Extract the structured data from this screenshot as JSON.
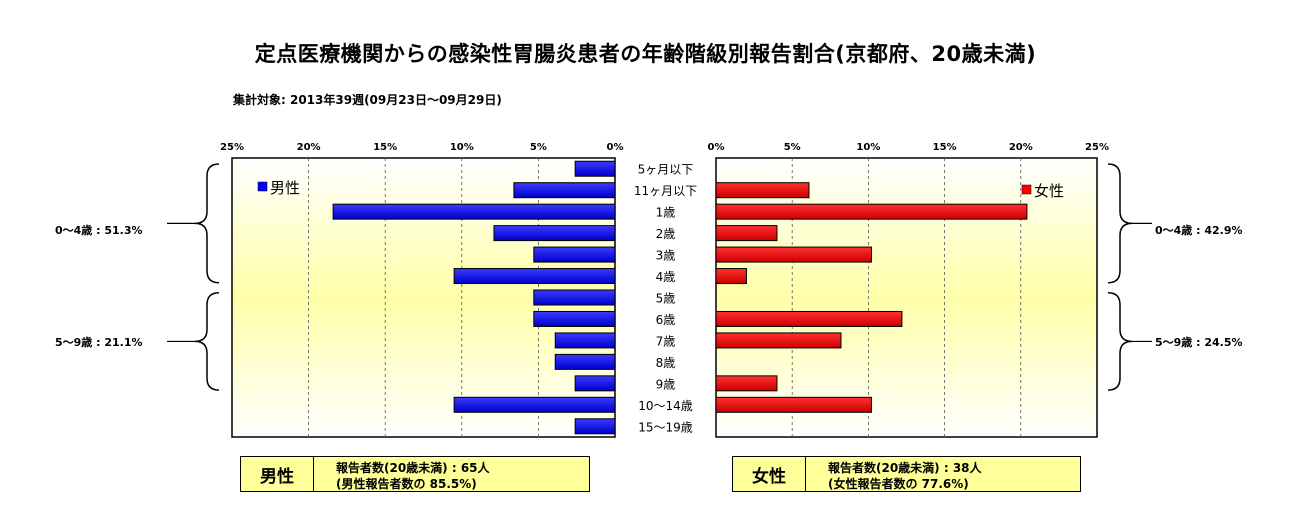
{
  "title": "定点医療機関からの感染性胃腸炎患者の年齢階級別報告割合(京都府、20歳未満)",
  "subtitle": "集計対象: 2013年39週(09月23日～09月29日)",
  "chart_data": {
    "type": "bar",
    "orientation": "horizontal-population-pyramid",
    "categories": [
      "5ヶ月以下",
      "11ヶ月以下",
      "1歳",
      "2歳",
      "3歳",
      "4歳",
      "5歳",
      "6歳",
      "7歳",
      "8歳",
      "9歳",
      "10～14歳",
      "15～19歳"
    ],
    "x_ticks": [
      "25%",
      "20%",
      "15%",
      "10%",
      "5%",
      "0%"
    ],
    "x_ticks_right": [
      "0%",
      "5%",
      "10%",
      "15%",
      "20%",
      "25%"
    ],
    "xlim": [
      0,
      25
    ],
    "grid": true,
    "series": [
      {
        "name": "男性",
        "color": "#0000ff",
        "side": "left",
        "values": [
          2.6,
          6.6,
          18.4,
          7.9,
          5.3,
          10.5,
          5.3,
          5.3,
          3.9,
          3.9,
          2.6,
          10.5,
          2.6
        ]
      },
      {
        "name": "女性",
        "color": "#ff0000",
        "side": "right",
        "values": [
          0,
          6.1,
          20.4,
          4.0,
          10.2,
          2.0,
          0,
          12.2,
          8.2,
          0,
          4.0,
          10.2,
          0
        ]
      }
    ],
    "legend": {
      "left": "男性",
      "right": "女性"
    },
    "groups": {
      "left": [
        {
          "label": "0～4歳 : 51.3%",
          "from": 0,
          "to": 5
        },
        {
          "label": "5～9歳 : 21.1%",
          "from": 6,
          "to": 10
        }
      ],
      "right": [
        {
          "label": "0～4歳 : 42.9%",
          "from": 0,
          "to": 5
        },
        {
          "label": "5～9歳 : 24.5%",
          "from": 6,
          "to": 10
        }
      ]
    }
  },
  "summary": {
    "male": {
      "gender": "男性",
      "line1": "報告者数(20歳未満) : 65人",
      "line2": "(男性報告者数の 85.5%)"
    },
    "female": {
      "gender": "女性",
      "line1": "報告者数(20歳未満) : 38人",
      "line2": "(女性報告者数の 77.6%)"
    }
  }
}
